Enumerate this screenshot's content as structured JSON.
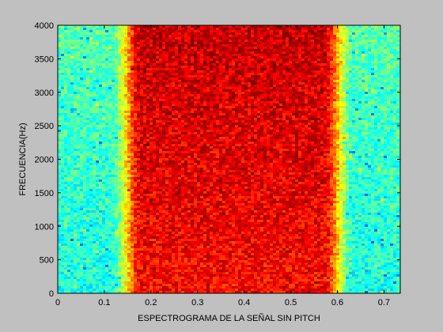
{
  "figure": {
    "background": "#c0c0c0"
  },
  "chart_data": {
    "type": "heatmap",
    "title": "",
    "xlabel": "ESPECTROGRAMA DE LA SEÑAL SIN PITCH",
    "ylabel": "FRECUENCIA(Hz)",
    "xlim": [
      0,
      0.735
    ],
    "ylim": [
      0,
      4000
    ],
    "x_ticks": [
      0,
      0.1,
      0.2,
      0.3,
      0.4,
      0.5,
      0.6,
      0.7
    ],
    "x_tick_labels": [
      "0",
      "0.1",
      "0.2",
      "0.3",
      "0.4",
      "0.5",
      "0.6",
      "0.7"
    ],
    "y_ticks": [
      0,
      500,
      1000,
      1500,
      2000,
      2500,
      3000,
      3500,
      4000
    ],
    "y_tick_labels": [
      "0",
      "500",
      "1000",
      "1500",
      "2000",
      "2500",
      "3000",
      "3500",
      "4000"
    ],
    "colormap": "jet",
    "grid": false,
    "legend": "none",
    "signal_segment_s": [
      0.15,
      0.6
    ],
    "low_level": "cyan-green background noise",
    "high_level": "red signal band"
  }
}
